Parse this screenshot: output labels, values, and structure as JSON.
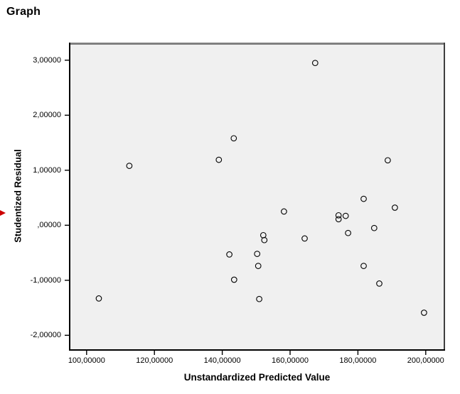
{
  "page": {
    "title": "Graph"
  },
  "viewer": {
    "selection_arrow_color": "#cc0000"
  },
  "chart_data": {
    "type": "scatter",
    "title": "Graph",
    "xlabel": "Unstandardized Predicted Value",
    "ylabel": "Studentized Residual",
    "plot_background": "#f0f0f0",
    "frame_colors": {
      "top": "#808080",
      "right": "#3f3f3f",
      "left": "#000000",
      "bottom": "#000000"
    },
    "marker": {
      "shape": "open-circle",
      "radius_px": 3.8,
      "stroke": "#000000"
    },
    "grid": false,
    "legend": null,
    "xlim": [
      94.8,
      205.7
    ],
    "ylim": [
      -2.28,
      3.32
    ],
    "x_ticks": {
      "values": [
        100,
        120,
        140,
        160,
        180,
        200
      ],
      "labels": [
        "100,00000",
        "120,00000",
        "140,00000",
        "160,00000",
        "180,00000",
        "200,00000"
      ]
    },
    "y_ticks": {
      "values": [
        3,
        2,
        1,
        0,
        -1,
        -2
      ],
      "labels": [
        "3,00000",
        "2,00000",
        "1,00000",
        ",00000",
        "-1,00000",
        "-2,00000"
      ]
    },
    "points": [
      [
        103.6,
        -1.33
      ],
      [
        112.6,
        1.08
      ],
      [
        139.0,
        1.19
      ],
      [
        142.1,
        -0.53
      ],
      [
        143.4,
        1.58
      ],
      [
        143.5,
        -0.99
      ],
      [
        150.3,
        -0.52
      ],
      [
        150.6,
        -0.74
      ],
      [
        150.9,
        -1.34
      ],
      [
        152.1,
        -0.18
      ],
      [
        152.4,
        -0.27
      ],
      [
        158.2,
        0.25
      ],
      [
        164.3,
        -0.24
      ],
      [
        167.4,
        2.95
      ],
      [
        174.3,
        0.18
      ],
      [
        174.3,
        0.11
      ],
      [
        176.4,
        0.17
      ],
      [
        177.1,
        -0.14
      ],
      [
        181.7,
        0.48
      ],
      [
        181.7,
        -0.74
      ],
      [
        184.8,
        -0.05
      ],
      [
        186.3,
        -1.06
      ],
      [
        188.8,
        1.18
      ],
      [
        190.9,
        0.32
      ],
      [
        199.5,
        -1.59
      ]
    ]
  }
}
